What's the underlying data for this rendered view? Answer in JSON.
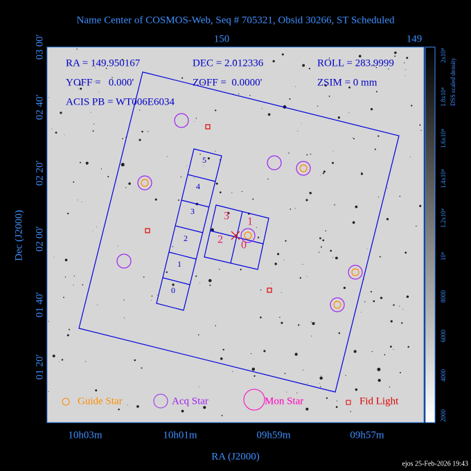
{
  "title": "Name Center of COSMOS-Web, Seq # 705321, Obsid 30266, ST Scheduled",
  "info": [
    "RA = 149.950167",
    "DEC = 2.012336",
    "ROLL = 283.9999",
    "YOFF =   0.000'",
    "ZOFF =  0.0000'",
    "ZSIM = 0 mm",
    "ACIS PB = WT006E6034"
  ],
  "x_axis": {
    "label": "RA (J2000)",
    "ticks": [
      "10h03m",
      "10h01m",
      "09h59m",
      "09h57m"
    ],
    "top_ticks": [
      "150",
      "149"
    ]
  },
  "y_axis": {
    "label": "Dec (J2000)",
    "ticks": [
      "03 00'",
      "02 40'",
      "02 20'",
      "02 00'",
      "01 40'",
      "01 20'"
    ]
  },
  "colorbar": {
    "label": "DSS scaled density",
    "ticks": [
      "2000",
      "4000",
      "6000",
      "8000",
      "10⁴",
      "1.2x10⁴",
      "1.4x10⁴",
      "1.6x10⁴",
      "1.8x10⁴",
      "2x10⁴"
    ]
  },
  "legend": [
    "Guide Star",
    "Acq Star",
    "Mon Star",
    "Fid Light"
  ],
  "chips_s": [
    "5",
    "4",
    "3",
    "2",
    "1",
    "0"
  ],
  "chips_i": [
    "3",
    "1",
    "2",
    "0"
  ],
  "footer": "ejos 25-Feb-2026 19:43"
}
